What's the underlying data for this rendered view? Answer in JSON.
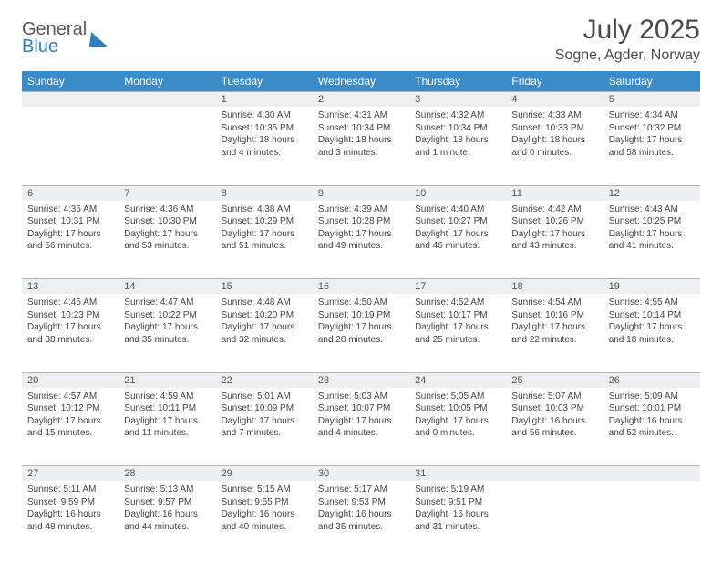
{
  "brand": {
    "line1": "General",
    "line2": "Blue"
  },
  "title": "July 2025",
  "location": "Sogne, Agder, Norway",
  "colors": {
    "header_bg": "#3b8bc9",
    "header_text": "#ffffff",
    "daynum_bg": "#edeff1",
    "border": "#aeb4bb",
    "brand_blue": "#2f7fc2",
    "text": "#444444"
  },
  "day_headers": [
    "Sunday",
    "Monday",
    "Tuesday",
    "Wednesday",
    "Thursday",
    "Friday",
    "Saturday"
  ],
  "weeks": [
    [
      null,
      null,
      {
        "n": "1",
        "sunrise": "4:30 AM",
        "sunset": "10:35 PM",
        "daylight": "18 hours and 4 minutes."
      },
      {
        "n": "2",
        "sunrise": "4:31 AM",
        "sunset": "10:34 PM",
        "daylight": "18 hours and 3 minutes."
      },
      {
        "n": "3",
        "sunrise": "4:32 AM",
        "sunset": "10:34 PM",
        "daylight": "18 hours and 1 minute."
      },
      {
        "n": "4",
        "sunrise": "4:33 AM",
        "sunset": "10:33 PM",
        "daylight": "18 hours and 0 minutes."
      },
      {
        "n": "5",
        "sunrise": "4:34 AM",
        "sunset": "10:32 PM",
        "daylight": "17 hours and 58 minutes."
      }
    ],
    [
      {
        "n": "6",
        "sunrise": "4:35 AM",
        "sunset": "10:31 PM",
        "daylight": "17 hours and 56 minutes."
      },
      {
        "n": "7",
        "sunrise": "4:36 AM",
        "sunset": "10:30 PM",
        "daylight": "17 hours and 53 minutes."
      },
      {
        "n": "8",
        "sunrise": "4:38 AM",
        "sunset": "10:29 PM",
        "daylight": "17 hours and 51 minutes."
      },
      {
        "n": "9",
        "sunrise": "4:39 AM",
        "sunset": "10:28 PM",
        "daylight": "17 hours and 49 minutes."
      },
      {
        "n": "10",
        "sunrise": "4:40 AM",
        "sunset": "10:27 PM",
        "daylight": "17 hours and 46 minutes."
      },
      {
        "n": "11",
        "sunrise": "4:42 AM",
        "sunset": "10:26 PM",
        "daylight": "17 hours and 43 minutes."
      },
      {
        "n": "12",
        "sunrise": "4:43 AM",
        "sunset": "10:25 PM",
        "daylight": "17 hours and 41 minutes."
      }
    ],
    [
      {
        "n": "13",
        "sunrise": "4:45 AM",
        "sunset": "10:23 PM",
        "daylight": "17 hours and 38 minutes."
      },
      {
        "n": "14",
        "sunrise": "4:47 AM",
        "sunset": "10:22 PM",
        "daylight": "17 hours and 35 minutes."
      },
      {
        "n": "15",
        "sunrise": "4:48 AM",
        "sunset": "10:20 PM",
        "daylight": "17 hours and 32 minutes."
      },
      {
        "n": "16",
        "sunrise": "4:50 AM",
        "sunset": "10:19 PM",
        "daylight": "17 hours and 28 minutes."
      },
      {
        "n": "17",
        "sunrise": "4:52 AM",
        "sunset": "10:17 PM",
        "daylight": "17 hours and 25 minutes."
      },
      {
        "n": "18",
        "sunrise": "4:54 AM",
        "sunset": "10:16 PM",
        "daylight": "17 hours and 22 minutes."
      },
      {
        "n": "19",
        "sunrise": "4:55 AM",
        "sunset": "10:14 PM",
        "daylight": "17 hours and 18 minutes."
      }
    ],
    [
      {
        "n": "20",
        "sunrise": "4:57 AM",
        "sunset": "10:12 PM",
        "daylight": "17 hours and 15 minutes."
      },
      {
        "n": "21",
        "sunrise": "4:59 AM",
        "sunset": "10:11 PM",
        "daylight": "17 hours and 11 minutes."
      },
      {
        "n": "22",
        "sunrise": "5:01 AM",
        "sunset": "10:09 PM",
        "daylight": "17 hours and 7 minutes."
      },
      {
        "n": "23",
        "sunrise": "5:03 AM",
        "sunset": "10:07 PM",
        "daylight": "17 hours and 4 minutes."
      },
      {
        "n": "24",
        "sunrise": "5:05 AM",
        "sunset": "10:05 PM",
        "daylight": "17 hours and 0 minutes."
      },
      {
        "n": "25",
        "sunrise": "5:07 AM",
        "sunset": "10:03 PM",
        "daylight": "16 hours and 56 minutes."
      },
      {
        "n": "26",
        "sunrise": "5:09 AM",
        "sunset": "10:01 PM",
        "daylight": "16 hours and 52 minutes."
      }
    ],
    [
      {
        "n": "27",
        "sunrise": "5:11 AM",
        "sunset": "9:59 PM",
        "daylight": "16 hours and 48 minutes."
      },
      {
        "n": "28",
        "sunrise": "5:13 AM",
        "sunset": "9:57 PM",
        "daylight": "16 hours and 44 minutes."
      },
      {
        "n": "29",
        "sunrise": "5:15 AM",
        "sunset": "9:55 PM",
        "daylight": "16 hours and 40 minutes."
      },
      {
        "n": "30",
        "sunrise": "5:17 AM",
        "sunset": "9:53 PM",
        "daylight": "16 hours and 35 minutes."
      },
      {
        "n": "31",
        "sunrise": "5:19 AM",
        "sunset": "9:51 PM",
        "daylight": "16 hours and 31 minutes."
      },
      null,
      null
    ]
  ],
  "labels": {
    "sunrise": "Sunrise:",
    "sunset": "Sunset:",
    "daylight": "Daylight:"
  }
}
